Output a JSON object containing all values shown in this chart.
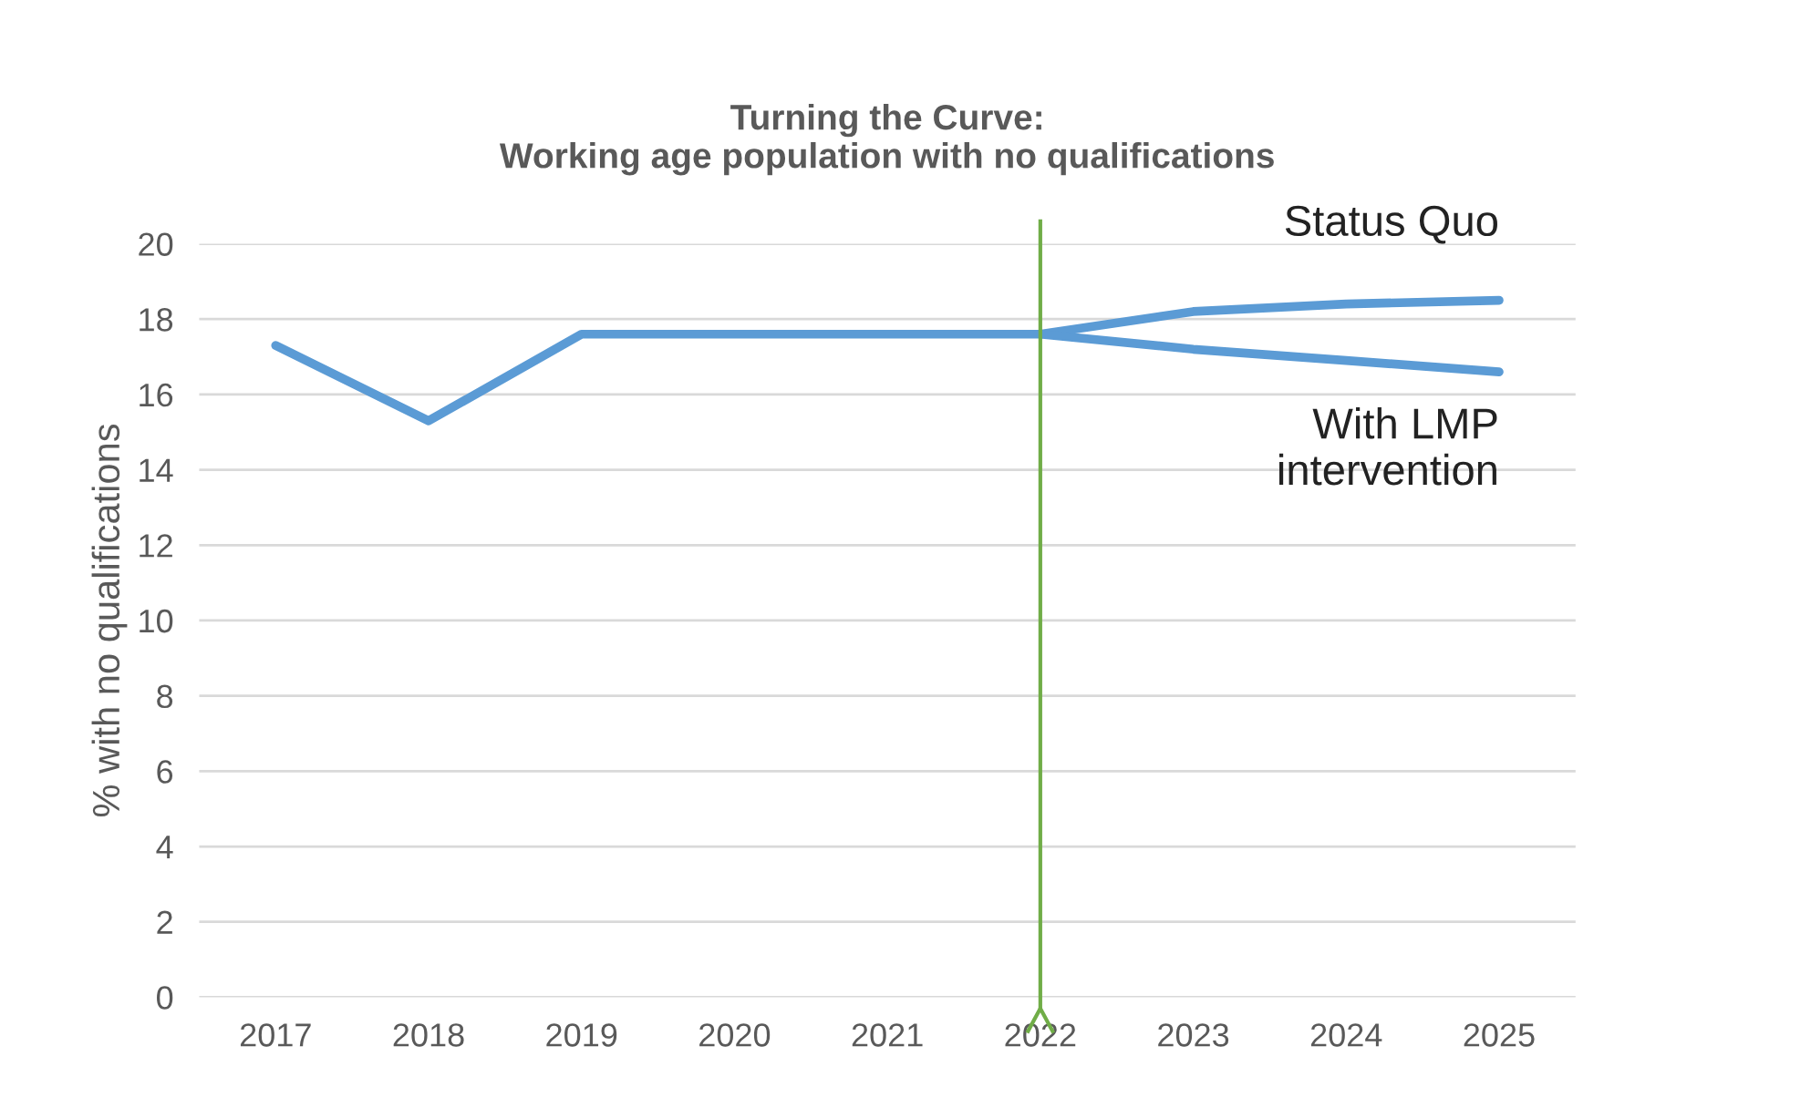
{
  "chart_data": {
    "type": "line",
    "title": "Turning the Curve:\nWorking age population with no qualifications",
    "ylabel": "% with no qualifications",
    "categories": [
      "2017",
      "2018",
      "2019",
      "2020",
      "2021",
      "2022",
      "2023",
      "2024",
      "2025"
    ],
    "series": [
      {
        "name": "Status Quo",
        "color": "#5b9bd5",
        "values": [
          17.3,
          15.3,
          17.6,
          17.6,
          17.6,
          17.6,
          18.2,
          18.4,
          18.5
        ]
      },
      {
        "name": "With LMP\nintervention",
        "color": "#5b9bd5",
        "values": [
          null,
          null,
          null,
          null,
          null,
          17.6,
          17.2,
          16.9,
          16.6
        ]
      }
    ],
    "ylim": [
      0,
      20
    ],
    "yticks": [
      0,
      2,
      4,
      6,
      8,
      10,
      12,
      14,
      16,
      18,
      20
    ],
    "grid": "y",
    "legend": false,
    "marker": "none",
    "line_style": "solid",
    "ref_lines": [
      {
        "axis": "x",
        "value": "2022",
        "color": "#70ad47"
      }
    ]
  }
}
